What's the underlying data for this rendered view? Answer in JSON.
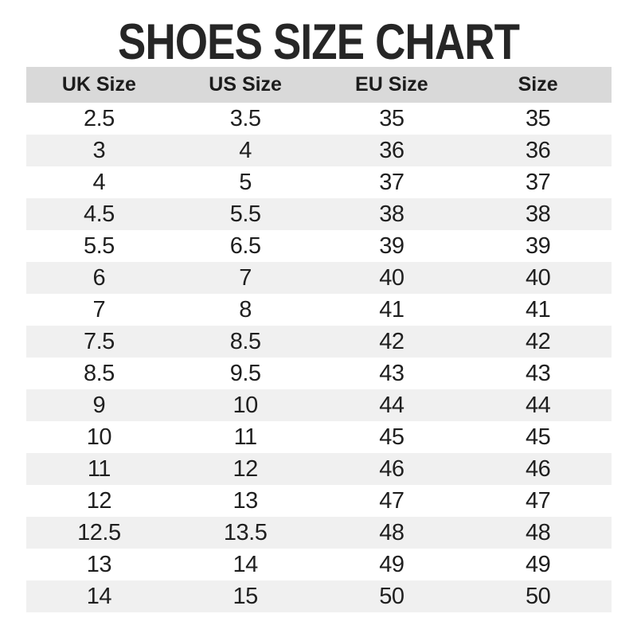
{
  "page": {
    "title": "SHOES SIZE CHART"
  },
  "chart_data": {
    "type": "table",
    "title": "SHOES SIZE CHART",
    "columns": [
      "UK Size",
      "US Size",
      "EU Size",
      "Size"
    ],
    "rows": [
      [
        "2.5",
        "3.5",
        "35",
        "35"
      ],
      [
        "3",
        "4",
        "36",
        "36"
      ],
      [
        "4",
        "5",
        "37",
        "37"
      ],
      [
        "4.5",
        "5.5",
        "38",
        "38"
      ],
      [
        "5.5",
        "6.5",
        "39",
        "39"
      ],
      [
        "6",
        "7",
        "40",
        "40"
      ],
      [
        "7",
        "8",
        "41",
        "41"
      ],
      [
        "7.5",
        "8.5",
        "42",
        "42"
      ],
      [
        "8.5",
        "9.5",
        "43",
        "43"
      ],
      [
        "9",
        "10",
        "44",
        "44"
      ],
      [
        "10",
        "11",
        "45",
        "45"
      ],
      [
        "11",
        "12",
        "46",
        "46"
      ],
      [
        "12",
        "13",
        "47",
        "47"
      ],
      [
        "12.5",
        "13.5",
        "48",
        "48"
      ],
      [
        "13",
        "14",
        "49",
        "49"
      ],
      [
        "14",
        "15",
        "50",
        "50"
      ]
    ],
    "layout": {
      "header_row": true,
      "striped_rows": true,
      "stripe_pattern": "even-rows-gray",
      "grid": false
    }
  },
  "colors": {
    "header_bg": "#d9d9d9",
    "stripe_bg": "#f0f0f0",
    "text": "#1f1f1f",
    "title": "#262626",
    "page_bg": "#ffffff"
  }
}
